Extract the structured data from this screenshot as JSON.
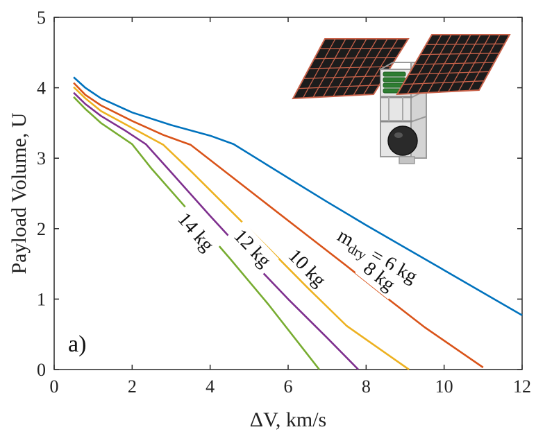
{
  "chart_data": {
    "type": "line",
    "xlabel": "ΔV, km/s",
    "ylabel": "Payload Volume, U",
    "xlim": [
      0,
      12
    ],
    "ylim": [
      0,
      5
    ],
    "xticks": [
      0,
      2,
      4,
      6,
      8,
      10,
      12
    ],
    "yticks": [
      0,
      1,
      2,
      3,
      4,
      5
    ],
    "grid": false,
    "panel_label": "a)",
    "series": [
      {
        "name": "6 kg",
        "color": "#0072BD",
        "label": {
          "prefix": "m",
          "sub": "dry",
          "suffix": " = 6 kg",
          "at": [
            8.3,
            1.62
          ]
        },
        "points": [
          [
            0.5,
            4.15
          ],
          [
            0.8,
            4.0
          ],
          [
            1.2,
            3.85
          ],
          [
            2.0,
            3.65
          ],
          [
            3.0,
            3.47
          ],
          [
            4.0,
            3.32
          ],
          [
            4.6,
            3.2
          ],
          [
            6.0,
            2.72
          ],
          [
            7.0,
            2.38
          ],
          [
            8.0,
            2.05
          ],
          [
            9.0,
            1.73
          ],
          [
            10.0,
            1.41
          ],
          [
            11.0,
            1.09
          ],
          [
            12.0,
            0.77
          ]
        ]
      },
      {
        "name": "8 kg",
        "color": "#D95319",
        "label": {
          "text": "8 kg",
          "at": [
            8.35,
            1.33
          ]
        },
        "points": [
          [
            0.5,
            4.07
          ],
          [
            0.8,
            3.9
          ],
          [
            1.2,
            3.75
          ],
          [
            2.0,
            3.53
          ],
          [
            2.8,
            3.33
          ],
          [
            3.5,
            3.19
          ],
          [
            4.5,
            2.76
          ],
          [
            5.5,
            2.33
          ],
          [
            6.5,
            1.9
          ],
          [
            7.5,
            1.47
          ],
          [
            8.5,
            1.03
          ],
          [
            9.5,
            0.6
          ],
          [
            11.0,
            0.03
          ]
        ]
      },
      {
        "name": "10 kg",
        "color": "#EDB120",
        "label": {
          "text": "10 kg",
          "at": [
            6.5,
            1.45
          ]
        },
        "points": [
          [
            0.5,
            4.01
          ],
          [
            0.8,
            3.85
          ],
          [
            1.2,
            3.67
          ],
          [
            2.0,
            3.43
          ],
          [
            2.8,
            3.19
          ],
          [
            3.5,
            2.82
          ],
          [
            4.5,
            2.27
          ],
          [
            5.5,
            1.72
          ],
          [
            6.5,
            1.16
          ],
          [
            7.5,
            0.62
          ],
          [
            9.1,
            0.0
          ]
        ]
      },
      {
        "name": "12 kg",
        "color": "#7E2F8E",
        "label": {
          "text": "12 kg",
          "at": [
            5.1,
            1.73
          ]
        },
        "points": [
          [
            0.5,
            3.93
          ],
          [
            0.8,
            3.77
          ],
          [
            1.2,
            3.6
          ],
          [
            1.8,
            3.4
          ],
          [
            2.35,
            3.2
          ],
          [
            3.0,
            2.8
          ],
          [
            4.0,
            2.18
          ],
          [
            5.0,
            1.58
          ],
          [
            6.0,
            1.0
          ],
          [
            7.0,
            0.45
          ],
          [
            7.8,
            0.0
          ]
        ]
      },
      {
        "name": "14 kg",
        "color": "#77AC30",
        "label": {
          "text": "14 kg",
          "at": [
            3.65,
            1.96
          ]
        },
        "points": [
          [
            0.5,
            3.87
          ],
          [
            0.8,
            3.7
          ],
          [
            1.2,
            3.5
          ],
          [
            2.0,
            3.2
          ],
          [
            2.5,
            2.85
          ],
          [
            3.5,
            2.22
          ],
          [
            4.5,
            1.58
          ],
          [
            5.5,
            0.92
          ],
          [
            6.8,
            0.0
          ]
        ]
      }
    ]
  },
  "illustration": {
    "name": "cubesat-with-solar-panels",
    "panel_color": "#1c1c1c",
    "panel_grid_color": "#c8624a",
    "frame_color": "#b9b9b9",
    "coil_color": "#2e7d32",
    "tank_color": "#2a2a2a"
  }
}
